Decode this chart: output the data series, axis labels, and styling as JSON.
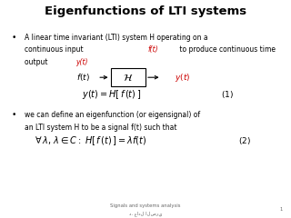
{
  "title": "Eigenfunctions of LTI systems",
  "title_fontsize": 9.5,
  "bg_color": "#ffffff",
  "bullet1_line1": "A linear time invariant (LTI) system H operating on a",
  "bullet1_line2_pre": "continuous input ",
  "bullet1_ft": "f(t)",
  "bullet1_line2_post": " to produce continuous time",
  "bullet1_line3_pre": "output ",
  "bullet1_yt": "y(t)",
  "bullet2_line1": "we can define an eigenfunction (or eigensignal) of",
  "bullet2_line2": "an LTI system H to be a signal f(t) such that",
  "footer1": "Signals and systems analysis",
  "footer2": "د. عادل الصري",
  "page_num": "1",
  "red_color": "#cc0000",
  "black_color": "#000000",
  "gray_color": "#666666",
  "text_fontsize": 5.5,
  "eq_fontsize": 6.5,
  "small_fontsize": 3.8
}
